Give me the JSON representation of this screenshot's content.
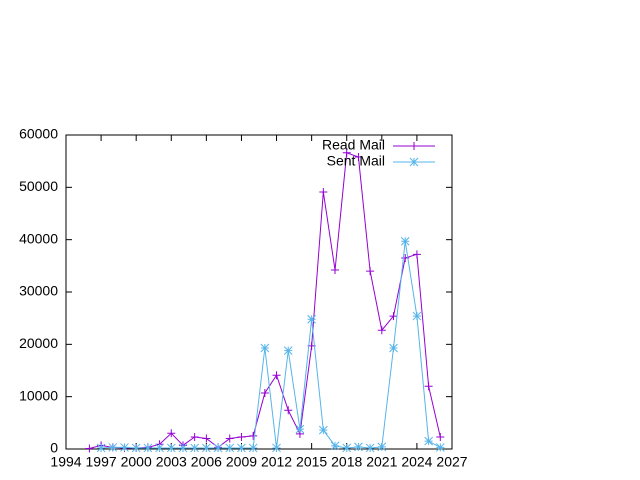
{
  "chart_data": {
    "type": "line",
    "x": [
      1996,
      1997,
      1998,
      1999,
      2000,
      2001,
      2002,
      2003,
      2004,
      2005,
      2006,
      2007,
      2008,
      2009,
      2010,
      2011,
      2012,
      2013,
      2014,
      2015,
      2016,
      2017,
      2018,
      2019,
      2020,
      2021,
      2022,
      2023,
      2024,
      2025,
      2026
    ],
    "series": [
      {
        "name": "Read Mail",
        "color": "#9400d3",
        "marker": "plus",
        "values": [
          100,
          700,
          300,
          200,
          200,
          300,
          900,
          3000,
          700,
          2300,
          2000,
          300,
          2000,
          2300,
          2500,
          10700,
          14100,
          7400,
          2900,
          19700,
          49100,
          34200,
          56600,
          55800,
          34000,
          22700,
          25400,
          36500,
          37200,
          12000,
          2300
        ]
      },
      {
        "name": "Sent Mail",
        "color": "#56b4e9",
        "marker": "star",
        "values": [
          null,
          200,
          300,
          300,
          200,
          200,
          200,
          200,
          200,
          200,
          200,
          200,
          200,
          200,
          200,
          19300,
          200,
          18800,
          3800,
          24800,
          3600,
          600,
          200,
          400,
          200,
          400,
          19300,
          39700,
          25400,
          1500,
          300
        ]
      }
    ],
    "xlim": [
      1994,
      2027
    ],
    "xticks": [
      1994,
      1997,
      2000,
      2003,
      2006,
      2009,
      2012,
      2015,
      2018,
      2021,
      2024,
      2027
    ],
    "ylim": [
      0,
      60000
    ],
    "yticks": [
      0,
      10000,
      20000,
      30000,
      40000,
      50000,
      60000
    ],
    "grid": false,
    "legend": "top-right"
  }
}
